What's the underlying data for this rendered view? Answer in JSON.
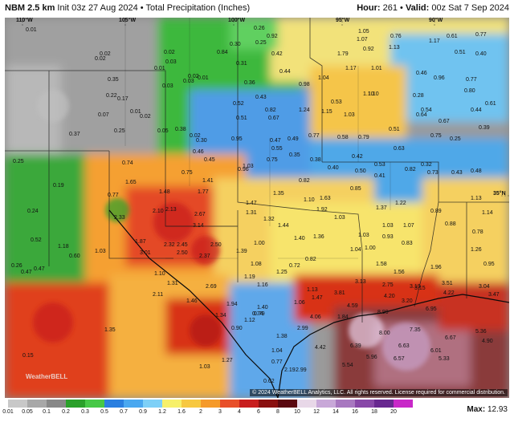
{
  "header": {
    "model": "NBM 2.5 km",
    "init": "Init 03z 27 Aug 2024",
    "separator": "•",
    "product": "Total Precipitation (Inches)",
    "hour_label": "Hour:",
    "hour": "261",
    "valid_label": "Valid:",
    "valid": "00z Sat 7 Sep 2024"
  },
  "coords": {
    "lon110": "110°W",
    "lon105": "105°W",
    "lon100": "100°W",
    "lon95": "95°W",
    "lon90": "90°W",
    "lat35": "35°N"
  },
  "credit": "© 2024 WeatherBELL Analytics, LLC. All rights reserved. License required for commercial distribution.",
  "logo": "WeatherBELL",
  "colorbar": {
    "labels": [
      "0.01",
      "0.05",
      "0.1",
      "0.2",
      "0.3",
      "0.5",
      "0.7",
      "0.9",
      "1.2",
      "1.6",
      "2",
      "3",
      "4",
      "6",
      "8",
      "10",
      "12",
      "14",
      "16",
      "18",
      "20"
    ],
    "colors": [
      "#c8c8c8",
      "#a8a8a8",
      "#888888",
      "#2aa02a",
      "#46c846",
      "#2a7fe0",
      "#4aa8f0",
      "#7ed0f7",
      "#f7f06a",
      "#f7c840",
      "#f59a2a",
      "#e8502a",
      "#c81e1e",
      "#8a1010",
      "#5a0810",
      "#e8d8e8",
      "#c8a8d8",
      "#a878c0",
      "#8848a8",
      "#682890",
      "#c828c8"
    ],
    "max_label": "Max:",
    "max_value": "12.93"
  },
  "values": {
    "v1": "0.01",
    "v2": "0.02",
    "v3": "0.02",
    "v4": "0.03",
    "v5": "0.01",
    "v6": "0.02",
    "v7": "0.03",
    "v8": "0.35",
    "v9": "0.17",
    "v10": "0.22",
    "v11": "0.07",
    "v12": "0.01",
    "v13": "0.02",
    "v14": "0.03",
    "v15": "0.02",
    "v16": "0.01",
    "v17": "0.02",
    "v18": "0.05",
    "v19": "0.38",
    "v20": "0.25",
    "v21": "0.37",
    "v22": "0.30",
    "v23": "0.46",
    "v24": "0.45",
    "v25": "0.74",
    "v26": "0.75",
    "v27": "0.19",
    "v28": "0.25",
    "v29": "0.24",
    "v30": "0.52",
    "v31": "0.47",
    "v32": "0.96",
    "v33": "1.65",
    "v34": "0.77",
    "v35": "1.48",
    "v36": "1.41",
    "v37": "1.77",
    "v38": "2.33",
    "v39": "2.10",
    "v40": "2.13",
    "v41": "2.67",
    "v42": "3.14",
    "v43": "1.87",
    "v44": "2.32",
    "v45": "2.45",
    "v46": "2.50",
    "v47": "3.01",
    "v48": "2.50",
    "v49": "2.37",
    "v50": "1.18",
    "v51": "1.03",
    "v52": "0.60",
    "v53": "0.26",
    "v54": "0.47",
    "v55": "1.10",
    "v56": "1.31",
    "v57": "2.11",
    "v58": "1.46",
    "v59": "2.69",
    "v60": "1.94",
    "v61": "1.34",
    "v62": "1.35",
    "v63": "0.15",
    "v64": "1.03",
    "v65": "0.90",
    "v66": "1.12",
    "v67": "0.79",
    "v68": "1.38",
    "v69": "1.40",
    "v70": "1.27",
    "v71": "0.62",
    "v72": "2.99",
    "v73": "1.04",
    "v74": "0.77",
    "v75": "2.19",
    "v76": "0.26",
    "v77": "0.92",
    "v78": "0.30",
    "v79": "0.25",
    "v80": "0.31",
    "v81": "0.84",
    "v82": "0.42",
    "v83": "0.44",
    "v84": "0.36",
    "v85": "0.43",
    "v86": "0.52",
    "v87": "0.82",
    "v88": "0.51",
    "v89": "0.67",
    "v90": "0.95",
    "v91": "0.47",
    "v92": "0.49",
    "v93": "0.77",
    "v94": "0.55",
    "v95": "0.75",
    "v96": "1.03",
    "v97": "1.47",
    "v98": "1.31",
    "v99": "1.35",
    "v100": "0.82",
    "v101": "1.10",
    "v102": "1.63",
    "v103": "1.32",
    "v104": "1.44",
    "v105": "1.92",
    "v106": "1.40",
    "v107": "1.36",
    "v108": "1.00",
    "v109": "1.39",
    "v110": "1.08",
    "v111": "1.19",
    "v112": "1.16",
    "v113": "0.72",
    "v114": "1.25",
    "v115": "0.82",
    "v116": "1.13",
    "v117": "1.06",
    "v118": "1.47",
    "v119": "4.06",
    "v120": "4.42",
    "v121": "0.74",
    "v122": "1.84",
    "v123": "1.10",
    "v124": "0.35",
    "v125": "0.38",
    "v126": "0.42",
    "v127": "0.40",
    "v128": "0.50",
    "v129": "0.85",
    "v130": "0.53",
    "v131": "0.41",
    "v132": "0.82",
    "v133": "0.73",
    "v134": "1.03",
    "v135": "1.37",
    "v136": "1.22",
    "v137": "1.03",
    "v138": "1.07",
    "v139": "0.89",
    "v140": "0.83",
    "v141": "1.00",
    "v142": "1.04",
    "v143": "1.58",
    "v144": "1.56",
    "v145": "1.96",
    "v146": "3.13",
    "v147": "3.81",
    "v148": "2.75",
    "v149": "3.15",
    "v150": "3.51",
    "v151": "3.04",
    "v152": "4.20",
    "v153": "4.22",
    "v154": "3.47",
    "v155": "3.20",
    "v156": "8.99",
    "v157": "6.95",
    "v158": "8.00",
    "v159": "7.35",
    "v160": "6.39",
    "v161": "6.63",
    "v162": "6.67",
    "v163": "5.36",
    "v164": "5.96",
    "v165": "6.57",
    "v166": "6.01",
    "v167": "4.90",
    "v168": "5.54",
    "v169": "5.33",
    "v170": "2.99",
    "v171": "3.19",
    "v172": "4.59",
    "v173": "0.98",
    "v174": "1.04",
    "v175": "1.24",
    "v176": "1.15",
    "v177": "1.03",
    "v178": "0.58",
    "v179": "0.79",
    "v180": "0.51",
    "v181": "0.64",
    "v182": "0.75",
    "v183": "0.25",
    "v184": "0.28",
    "v185": "0.39",
    "v186": "0.43",
    "v187": "0.48",
    "v188": "0.32",
    "v189": "0.63",
    "v190": "1.10",
    "v191": "1.17",
    "v192": "1.01",
    "v193": "0.92",
    "v194": "1.79",
    "v195": "1.07",
    "v196": "1.13",
    "v197": "1.05",
    "v198": "0.76",
    "v199": "0.61",
    "v200": "0.77",
    "v201": "0.46",
    "v202": "1.17",
    "v203": "0.51",
    "v204": "0.40",
    "v205": "0.96",
    "v206": "0.77",
    "v207": "0.80",
    "v208": "0.44",
    "v209": "0.61",
    "v210": "0.67",
    "v211": "0.54",
    "v212": "0.53",
    "v213": "0.78",
    "v214": "1.26",
    "v215": "1.13",
    "v216": "1.14",
    "v217": "0.95",
    "v218": "0.88",
    "v219": "1.03",
    "v220": "0.93"
  }
}
